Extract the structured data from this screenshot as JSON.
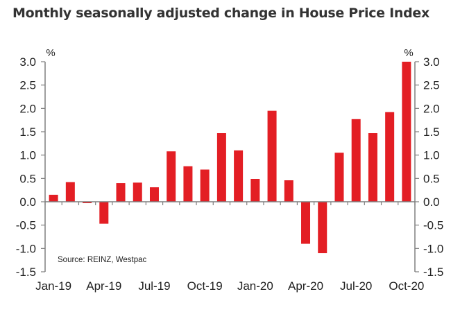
{
  "title": "Monthly seasonally adjusted change in House Price Index",
  "chart_data": {
    "type": "bar",
    "title": "Monthly seasonally adjusted change in House Price Index",
    "xlabel": "",
    "ylabel": "%",
    "y2label": "%",
    "ylim": [
      -1.5,
      3.0
    ],
    "yticks": [
      3.0,
      2.5,
      2.0,
      1.5,
      1.0,
      0.5,
      0.0,
      -0.5,
      -1.0,
      -1.5
    ],
    "ytick_labels": [
      "3.0",
      "2.5",
      "2.0",
      "1.5",
      "1.0",
      "0.5",
      "0.0",
      "-0.5",
      "-1.0",
      "-1.5"
    ],
    "dual_axis": true,
    "grid": false,
    "bar_color": "#E31E24",
    "categories": [
      "Jan-19",
      "Feb-19",
      "Mar-19",
      "Apr-19",
      "May-19",
      "Jun-19",
      "Jul-19",
      "Aug-19",
      "Sep-19",
      "Oct-19",
      "Nov-19",
      "Dec-19",
      "Jan-20",
      "Feb-20",
      "Mar-20",
      "Apr-20",
      "May-20",
      "Jun-20",
      "Jul-20",
      "Aug-20",
      "Sep-20",
      "Oct-20"
    ],
    "values": [
      0.15,
      0.42,
      -0.03,
      -0.47,
      0.4,
      0.41,
      0.31,
      1.08,
      0.76,
      0.69,
      1.47,
      1.1,
      0.49,
      1.95,
      0.46,
      -0.9,
      -1.1,
      1.05,
      1.77,
      1.47,
      1.92,
      3.0
    ],
    "xtick_labels": [
      {
        "index": 0,
        "label": "Jan-19"
      },
      {
        "index": 3,
        "label": "Apr-19"
      },
      {
        "index": 6,
        "label": "Jul-19"
      },
      {
        "index": 9,
        "label": "Oct-19"
      },
      {
        "index": 12,
        "label": "Jan-20"
      },
      {
        "index": 15,
        "label": "Apr-20"
      },
      {
        "index": 18,
        "label": "Jul-20"
      },
      {
        "index": 21,
        "label": "Oct-20"
      }
    ],
    "annotation": "Source: REINZ, Westpac"
  }
}
